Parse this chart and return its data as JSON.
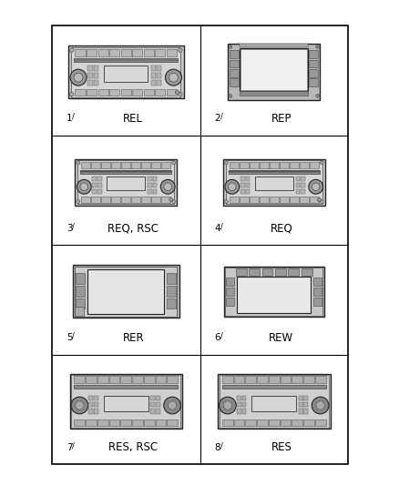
{
  "background_color": "#ffffff",
  "grid_rows": 4,
  "grid_cols": 2,
  "cells": [
    {
      "id": 1,
      "label": "REL",
      "row": 0,
      "col": 0,
      "type": "REL"
    },
    {
      "id": 2,
      "label": "REP",
      "row": 0,
      "col": 1,
      "type": "REP"
    },
    {
      "id": 3,
      "label": "REQ, RSC",
      "row": 1,
      "col": 0,
      "type": "REQ"
    },
    {
      "id": 4,
      "label": "REQ",
      "row": 1,
      "col": 1,
      "type": "REQ"
    },
    {
      "id": 5,
      "label": "RER",
      "row": 2,
      "col": 0,
      "type": "RER"
    },
    {
      "id": 6,
      "label": "REW",
      "row": 2,
      "col": 1,
      "type": "REW"
    },
    {
      "id": 7,
      "label": "RES, RSC",
      "row": 3,
      "col": 0,
      "type": "RES"
    },
    {
      "id": 8,
      "label": "RES",
      "row": 3,
      "col": 1,
      "type": "RES"
    }
  ]
}
